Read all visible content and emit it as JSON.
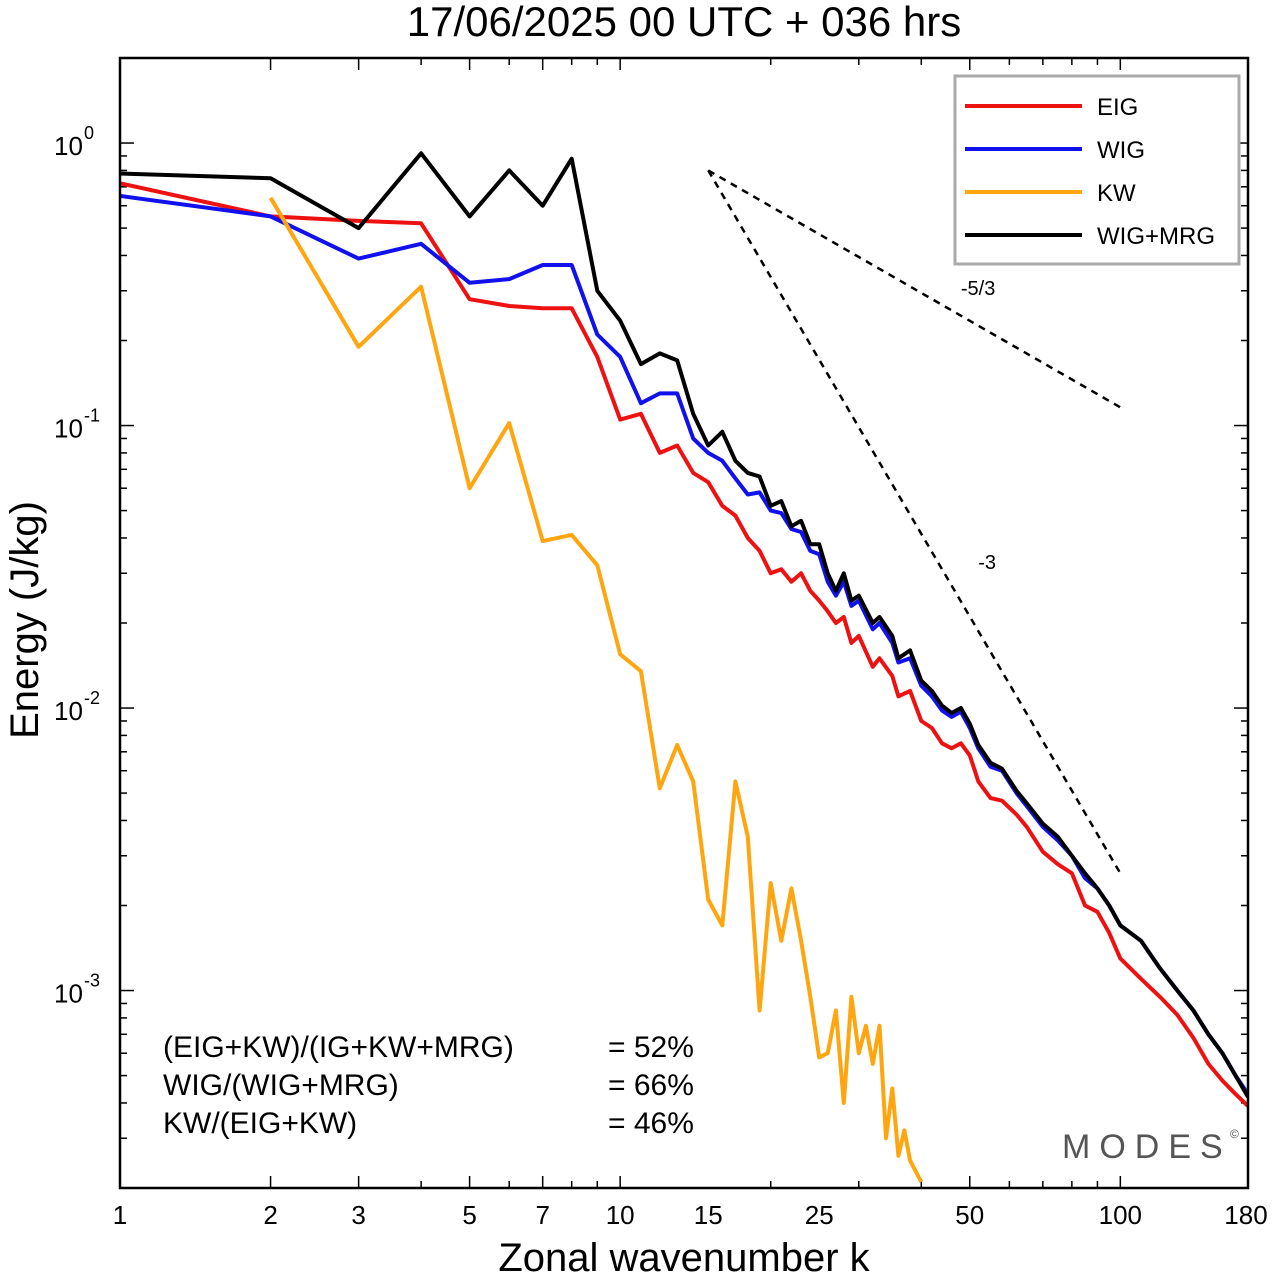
{
  "chart_data": {
    "type": "line",
    "title": "17/06/2025  00 UTC  + 036 hrs",
    "xlabel": "Zonal wavenumber k",
    "ylabel": "Energy (J/kg)",
    "xscale": "log",
    "yscale": "log",
    "xlim": [
      1,
      180
    ],
    "ylim": [
      0.0002,
      2.0
    ],
    "grid": false,
    "legend": "top-right",
    "x_ticks": [
      {
        "value": 1,
        "label": "1"
      },
      {
        "value": 2,
        "label": "2"
      },
      {
        "value": 3,
        "label": "3"
      },
      {
        "value": 5,
        "label": "5"
      },
      {
        "value": 7,
        "label": "7"
      },
      {
        "value": 10,
        "label": "10"
      },
      {
        "value": 15,
        "label": "15"
      },
      {
        "value": 25,
        "label": "25"
      },
      {
        "value": 50,
        "label": "50"
      },
      {
        "value": 100,
        "label": "100"
      },
      {
        "value": 180,
        "label": "180"
      }
    ],
    "y_ticks": [
      {
        "value": 1,
        "base": "10",
        "exp": "0"
      },
      {
        "value": 0.1,
        "base": "10",
        "exp": "-1"
      },
      {
        "value": 0.01,
        "base": "10",
        "exp": "-2"
      },
      {
        "value": 0.001,
        "base": "10",
        "exp": "-3"
      }
    ],
    "series": [
      {
        "name": "EIG",
        "color": "#ee1111",
        "points": [
          [
            1,
            0.72
          ],
          [
            2,
            0.55
          ],
          [
            3,
            0.53
          ],
          [
            4,
            0.52
          ],
          [
            5,
            0.28
          ],
          [
            6,
            0.265
          ],
          [
            7,
            0.26
          ],
          [
            8,
            0.26
          ],
          [
            9,
            0.175
          ],
          [
            10,
            0.105
          ],
          [
            11,
            0.11
          ],
          [
            12,
            0.08
          ],
          [
            13,
            0.085
          ],
          [
            14,
            0.068
          ],
          [
            15,
            0.063
          ],
          [
            16,
            0.052
          ],
          [
            17,
            0.048
          ],
          [
            18,
            0.04
          ],
          [
            19,
            0.036
          ],
          [
            20,
            0.03
          ],
          [
            21,
            0.031
          ],
          [
            22,
            0.028
          ],
          [
            23,
            0.03
          ],
          [
            24,
            0.026
          ],
          [
            25,
            0.024
          ],
          [
            26,
            0.022
          ],
          [
            27,
            0.02
          ],
          [
            28,
            0.021
          ],
          [
            29,
            0.017
          ],
          [
            30,
            0.018
          ],
          [
            32,
            0.014
          ],
          [
            33,
            0.015
          ],
          [
            35,
            0.013
          ],
          [
            36,
            0.011
          ],
          [
            38,
            0.0115
          ],
          [
            40,
            0.009
          ],
          [
            42,
            0.0085
          ],
          [
            44,
            0.0075
          ],
          [
            46,
            0.0072
          ],
          [
            48,
            0.0075
          ],
          [
            50,
            0.0068
          ],
          [
            52,
            0.0055
          ],
          [
            55,
            0.0048
          ],
          [
            58,
            0.0047
          ],
          [
            62,
            0.0042
          ],
          [
            65,
            0.0038
          ],
          [
            70,
            0.0031
          ],
          [
            75,
            0.0028
          ],
          [
            80,
            0.0026
          ],
          [
            85,
            0.002
          ],
          [
            90,
            0.0019
          ],
          [
            95,
            0.0016
          ],
          [
            100,
            0.0013
          ],
          [
            110,
            0.0011
          ],
          [
            120,
            0.00095
          ],
          [
            130,
            0.00082
          ],
          [
            140,
            0.00068
          ],
          [
            150,
            0.00055
          ],
          [
            160,
            0.00048
          ],
          [
            170,
            0.00043
          ],
          [
            180,
            0.00039
          ]
        ]
      },
      {
        "name": "WIG",
        "color": "#1111ee",
        "points": [
          [
            1,
            0.65
          ],
          [
            2,
            0.55
          ],
          [
            3,
            0.39
          ],
          [
            4,
            0.44
          ],
          [
            5,
            0.32
          ],
          [
            6,
            0.33
          ],
          [
            7,
            0.37
          ],
          [
            8,
            0.37
          ],
          [
            9,
            0.21
          ],
          [
            10,
            0.175
          ],
          [
            11,
            0.12
          ],
          [
            12,
            0.13
          ],
          [
            13,
            0.13
          ],
          [
            14,
            0.09
          ],
          [
            15,
            0.08
          ],
          [
            16,
            0.075
          ],
          [
            17,
            0.065
          ],
          [
            18,
            0.057
          ],
          [
            19,
            0.058
          ],
          [
            20,
            0.05
          ],
          [
            21,
            0.049
          ],
          [
            22,
            0.043
          ],
          [
            23,
            0.042
          ],
          [
            24,
            0.036
          ],
          [
            25,
            0.035
          ],
          [
            26,
            0.028
          ],
          [
            27,
            0.025
          ],
          [
            28,
            0.028
          ],
          [
            29,
            0.023
          ],
          [
            30,
            0.024
          ],
          [
            32,
            0.019
          ],
          [
            33,
            0.02
          ],
          [
            35,
            0.017
          ],
          [
            36,
            0.0145
          ],
          [
            38,
            0.015
          ],
          [
            40,
            0.012
          ],
          [
            42,
            0.011
          ],
          [
            44,
            0.0098
          ],
          [
            46,
            0.0093
          ],
          [
            48,
            0.0097
          ],
          [
            50,
            0.0085
          ],
          [
            52,
            0.0072
          ],
          [
            55,
            0.0062
          ],
          [
            58,
            0.006
          ],
          [
            62,
            0.005
          ],
          [
            65,
            0.0045
          ],
          [
            70,
            0.0038
          ],
          [
            75,
            0.0034
          ],
          [
            80,
            0.003
          ],
          [
            85,
            0.0025
          ],
          [
            90,
            0.0023
          ],
          [
            95,
            0.002
          ],
          [
            100,
            0.0017
          ],
          [
            110,
            0.0015
          ],
          [
            120,
            0.0012
          ],
          [
            130,
            0.001
          ],
          [
            140,
            0.00085
          ],
          [
            150,
            0.0007
          ],
          [
            160,
            0.0006
          ],
          [
            170,
            0.0005
          ],
          [
            180,
            0.00043
          ]
        ]
      },
      {
        "name": "KW",
        "color": "#ffa510",
        "points": [
          [
            2,
            0.64
          ],
          [
            3,
            0.19
          ],
          [
            4,
            0.31
          ],
          [
            5,
            0.06
          ],
          [
            6,
            0.102
          ],
          [
            7,
            0.039
          ],
          [
            8,
            0.041
          ],
          [
            9,
            0.032
          ],
          [
            10,
            0.0155
          ],
          [
            11,
            0.0135
          ],
          [
            12,
            0.0052
          ],
          [
            13,
            0.0074
          ],
          [
            14,
            0.0055
          ],
          [
            15,
            0.0021
          ],
          [
            16,
            0.0017
          ],
          [
            17,
            0.0055
          ],
          [
            18,
            0.0035
          ],
          [
            19,
            0.00085
          ],
          [
            20,
            0.0024
          ],
          [
            21,
            0.0015
          ],
          [
            22,
            0.0023
          ],
          [
            23,
            0.0015
          ],
          [
            24,
            0.00095
          ],
          [
            25,
            0.00058
          ],
          [
            26,
            0.0006
          ],
          [
            27,
            0.00085
          ],
          [
            28,
            0.0004
          ],
          [
            29,
            0.00095
          ],
          [
            30,
            0.0006
          ],
          [
            31,
            0.00075
          ],
          [
            32,
            0.00055
          ],
          [
            33,
            0.00075
          ],
          [
            34,
            0.0003
          ],
          [
            35,
            0.00045
          ],
          [
            36,
            0.00026
          ],
          [
            37,
            0.00032
          ],
          [
            38,
            0.00025
          ],
          [
            40,
            0.00021
          ]
        ]
      },
      {
        "name": "WIG+MRG",
        "color": "#000000",
        "points": [
          [
            1,
            0.78
          ],
          [
            2,
            0.75
          ],
          [
            3,
            0.5
          ],
          [
            4,
            0.92
          ],
          [
            5,
            0.55
          ],
          [
            6,
            0.8
          ],
          [
            7,
            0.6
          ],
          [
            8,
            0.88
          ],
          [
            9,
            0.3
          ],
          [
            10,
            0.235
          ],
          [
            11,
            0.165
          ],
          [
            12,
            0.18
          ],
          [
            13,
            0.17
          ],
          [
            14,
            0.11
          ],
          [
            15,
            0.085
          ],
          [
            16,
            0.095
          ],
          [
            17,
            0.075
          ],
          [
            18,
            0.068
          ],
          [
            19,
            0.066
          ],
          [
            20,
            0.052
          ],
          [
            21,
            0.054
          ],
          [
            22,
            0.044
          ],
          [
            23,
            0.046
          ],
          [
            24,
            0.038
          ],
          [
            25,
            0.038
          ],
          [
            26,
            0.03
          ],
          [
            27,
            0.026
          ],
          [
            28,
            0.03
          ],
          [
            29,
            0.024
          ],
          [
            30,
            0.025
          ],
          [
            32,
            0.02
          ],
          [
            33,
            0.021
          ],
          [
            35,
            0.018
          ],
          [
            36,
            0.015
          ],
          [
            38,
            0.016
          ],
          [
            40,
            0.0125
          ],
          [
            42,
            0.0115
          ],
          [
            44,
            0.0102
          ],
          [
            46,
            0.0096
          ],
          [
            48,
            0.01
          ],
          [
            50,
            0.0088
          ],
          [
            52,
            0.0074
          ],
          [
            55,
            0.0064
          ],
          [
            58,
            0.0061
          ],
          [
            62,
            0.0051
          ],
          [
            65,
            0.0046
          ],
          [
            70,
            0.0039
          ],
          [
            75,
            0.0035
          ],
          [
            80,
            0.003
          ],
          [
            85,
            0.0026
          ],
          [
            90,
            0.0023
          ],
          [
            95,
            0.002
          ],
          [
            100,
            0.0017
          ],
          [
            110,
            0.0015
          ],
          [
            120,
            0.0012
          ],
          [
            130,
            0.001
          ],
          [
            140,
            0.00085
          ],
          [
            150,
            0.0007
          ],
          [
            160,
            0.0006
          ],
          [
            170,
            0.0005
          ],
          [
            180,
            0.00042
          ]
        ]
      }
    ],
    "reference_lines": [
      {
        "label": "-5/3",
        "points": [
          [
            15,
            0.8
          ],
          [
            100,
            0.116
          ]
        ],
        "label_at": [
          48,
          0.29
        ]
      },
      {
        "label": "-3",
        "points": [
          [
            15,
            0.8
          ],
          [
            100,
            0.0026
          ]
        ],
        "label_at": [
          52,
          0.031
        ]
      }
    ],
    "stats": [
      {
        "name": "(EIG+KW)/(IG+KW+MRG)",
        "value": "= 52%"
      },
      {
        "name": "WIG/(WIG+MRG)",
        "value": "= 66%"
      },
      {
        "name": "KW/(EIG+KW)",
        "value": "= 46%"
      }
    ],
    "watermark": "MODES",
    "watermark_mark": "©"
  }
}
